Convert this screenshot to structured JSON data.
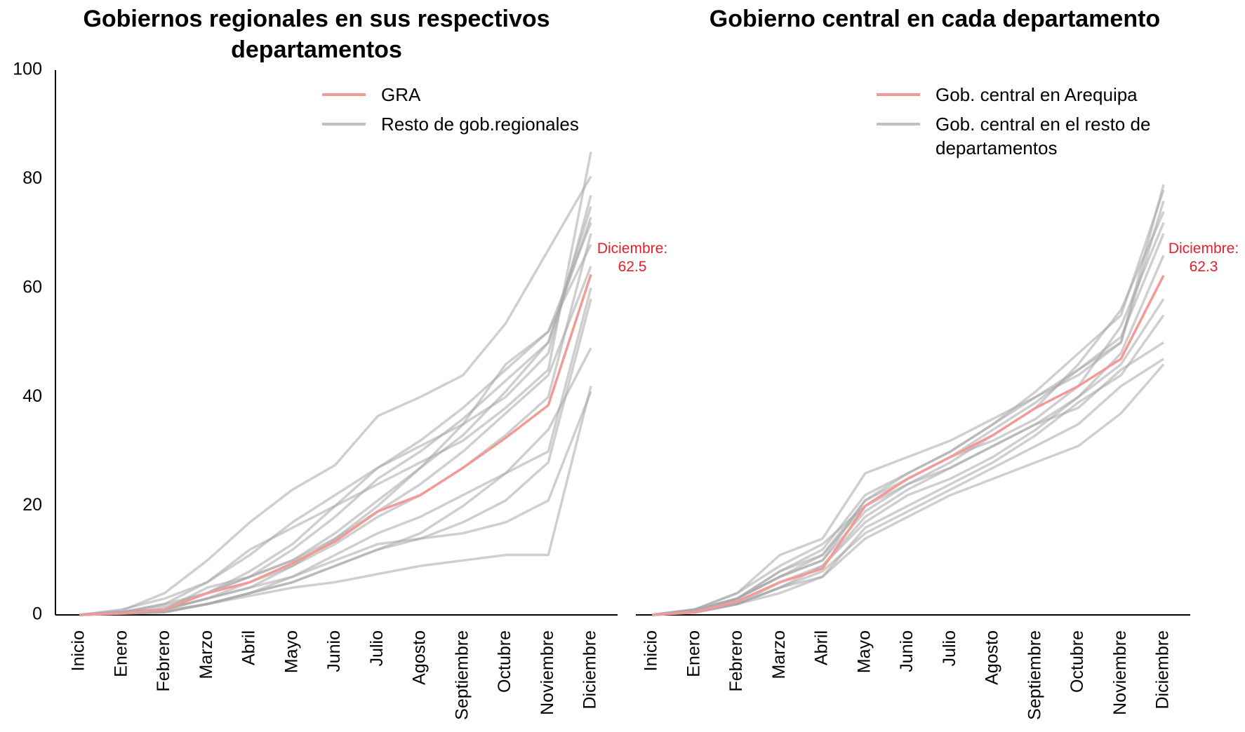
{
  "chart_data": [
    {
      "type": "line",
      "title": "Gobiernos regionales en sus respectivos departamentos",
      "categories": [
        "Inicio",
        "Enero",
        "Febrero",
        "Marzo",
        "Abril",
        "Mayo",
        "Junio",
        "Julio",
        "Agosto",
        "Septiembre",
        "Octubre",
        "Noviembre",
        "Diciembre"
      ],
      "ylim": [
        0,
        100
      ],
      "yticks": [
        0,
        20,
        40,
        60,
        80,
        100
      ],
      "annotation": "Diciembre: 62.5",
      "series": [
        {
          "name": "GRA",
          "color": "#f29a96",
          "values": [
            0,
            0.3,
            1,
            4,
            6,
            9.5,
            13.5,
            19,
            22,
            27,
            32.5,
            38.5,
            62.5
          ]
        },
        {
          "name": "Resto de gob.regionales",
          "color": "#a8a8a8",
          "values": [
            0,
            0.5,
            1,
            5,
            7,
            10,
            14,
            20,
            27,
            35,
            46,
            52,
            72
          ]
        },
        {
          "color": "#a8a8a8",
          "values": [
            0,
            0.3,
            0.5,
            2,
            4,
            6,
            9,
            12,
            14,
            17,
            21,
            28,
            58
          ]
        },
        {
          "color": "#a8a8a8",
          "values": [
            0,
            0.5,
            2,
            6,
            12,
            16,
            20,
            24,
            28,
            32,
            38,
            45,
            85
          ]
        },
        {
          "color": "#a8a8a8",
          "values": [
            0,
            0.8,
            4,
            10,
            17,
            23,
            27.5,
            36.5,
            40,
            44,
            53.5,
            67,
            80.5
          ]
        },
        {
          "color": "#a8a8a8",
          "values": [
            0,
            0.3,
            0.5,
            2,
            3.5,
            5,
            6,
            7.5,
            9,
            10,
            11,
            11,
            42
          ]
        },
        {
          "color": "#a8a8a8",
          "values": [
            0,
            0.5,
            1,
            3,
            5,
            7,
            10,
            13,
            14,
            15,
            17,
            21,
            41
          ]
        },
        {
          "color": "#a8a8a8",
          "values": [
            0,
            0.5,
            2,
            4,
            7,
            12,
            18,
            25,
            30,
            36,
            43,
            50,
            75
          ]
        },
        {
          "color": "#a8a8a8",
          "values": [
            0,
            0.3,
            1,
            3,
            6,
            9,
            13,
            18,
            22,
            27,
            33,
            40,
            70
          ]
        },
        {
          "color": "#a8a8a8",
          "values": [
            0,
            0.5,
            1,
            4,
            8,
            13,
            20,
            27,
            32,
            38,
            45,
            52,
            68
          ]
        },
        {
          "color": "#a8a8a8",
          "values": [
            0,
            0.3,
            0.8,
            2,
            4,
            7,
            11,
            15,
            18,
            22,
            26,
            30,
            60
          ]
        },
        {
          "color": "#a8a8a8",
          "values": [
            0,
            1,
            3,
            6,
            11,
            17,
            22,
            27,
            31,
            35,
            40,
            48,
            77
          ]
        },
        {
          "color": "#a8a8a8",
          "values": [
            0,
            0.3,
            1,
            3,
            5,
            9,
            14,
            19,
            24,
            30,
            37,
            44,
            64
          ]
        },
        {
          "color": "#a8a8a8",
          "values": [
            0,
            0.2,
            0.5,
            2,
            4,
            6,
            9,
            12,
            15,
            20,
            26,
            34,
            49
          ]
        },
        {
          "color": "#a8a8a8",
          "values": [
            0,
            0.5,
            1.5,
            4,
            7,
            10,
            15,
            21,
            27,
            33,
            41,
            50,
            73
          ]
        }
      ]
    },
    {
      "type": "line",
      "title": "Gobierno central en cada departamento",
      "categories": [
        "Inicio",
        "Enero",
        "Febrero",
        "Marzo",
        "Abril",
        "Mayo",
        "Junio",
        "Julio",
        "Agosto",
        "Septiembre",
        "Octubre",
        "Noviembre",
        "Diciembre"
      ],
      "ylim": [
        0,
        100
      ],
      "annotation": "Diciembre: 62.3",
      "series": [
        {
          "name": "Gob. central en Arequipa",
          "color": "#f29a96",
          "values": [
            0,
            0.5,
            2.5,
            6,
            8.5,
            20,
            25,
            29,
            33,
            38,
            42,
            47,
            62.3
          ]
        },
        {
          "name": "Gob. central en el resto  de departamentos",
          "color": "#a8a8a8",
          "values": [
            0,
            1,
            3,
            8,
            12,
            22,
            26,
            30,
            35,
            40,
            45,
            50,
            79
          ]
        },
        {
          "color": "#a8a8a8",
          "values": [
            0,
            0.5,
            2,
            5,
            7,
            14,
            18,
            22,
            25,
            28,
            31,
            37,
            46
          ]
        },
        {
          "color": "#a8a8a8",
          "values": [
            0,
            1,
            4,
            11,
            14,
            26,
            29,
            32,
            36,
            40,
            44,
            50,
            76
          ]
        },
        {
          "color": "#a8a8a8",
          "values": [
            0,
            0.5,
            2,
            5,
            9,
            18,
            23,
            27,
            31,
            35,
            40,
            46,
            58
          ]
        },
        {
          "color": "#a8a8a8",
          "values": [
            0,
            1,
            3,
            7,
            10,
            21,
            25,
            29,
            32,
            36,
            42,
            53,
            72
          ]
        },
        {
          "color": "#a8a8a8",
          "values": [
            0,
            0.5,
            2,
            4,
            7,
            16,
            20,
            24,
            28,
            33,
            39,
            44,
            55
          ]
        },
        {
          "color": "#a8a8a8",
          "values": [
            0,
            0.5,
            3,
            7,
            10,
            19,
            24,
            27,
            31,
            35,
            38,
            45,
            50
          ]
        },
        {
          "color": "#a8a8a8",
          "values": [
            0,
            1,
            4,
            9,
            13,
            20,
            24,
            28,
            33,
            38,
            46,
            56,
            74
          ]
        },
        {
          "color": "#a8a8a8",
          "values": [
            0,
            0.5,
            2,
            6,
            9,
            17,
            22,
            25,
            29,
            34,
            40,
            48,
            66
          ]
        },
        {
          "color": "#a8a8a8",
          "values": [
            0,
            0.7,
            3,
            8,
            11,
            21,
            26,
            30,
            35,
            41,
            48,
            55,
            78
          ]
        },
        {
          "color": "#a8a8a8",
          "values": [
            0,
            0.4,
            2,
            5,
            8,
            15,
            19,
            23,
            27,
            31,
            35,
            42,
            47
          ]
        },
        {
          "color": "#a8a8a8",
          "values": [
            0,
            0.6,
            3,
            7,
            11,
            20,
            25,
            29,
            34,
            39,
            45,
            51,
            70
          ]
        }
      ]
    }
  ]
}
